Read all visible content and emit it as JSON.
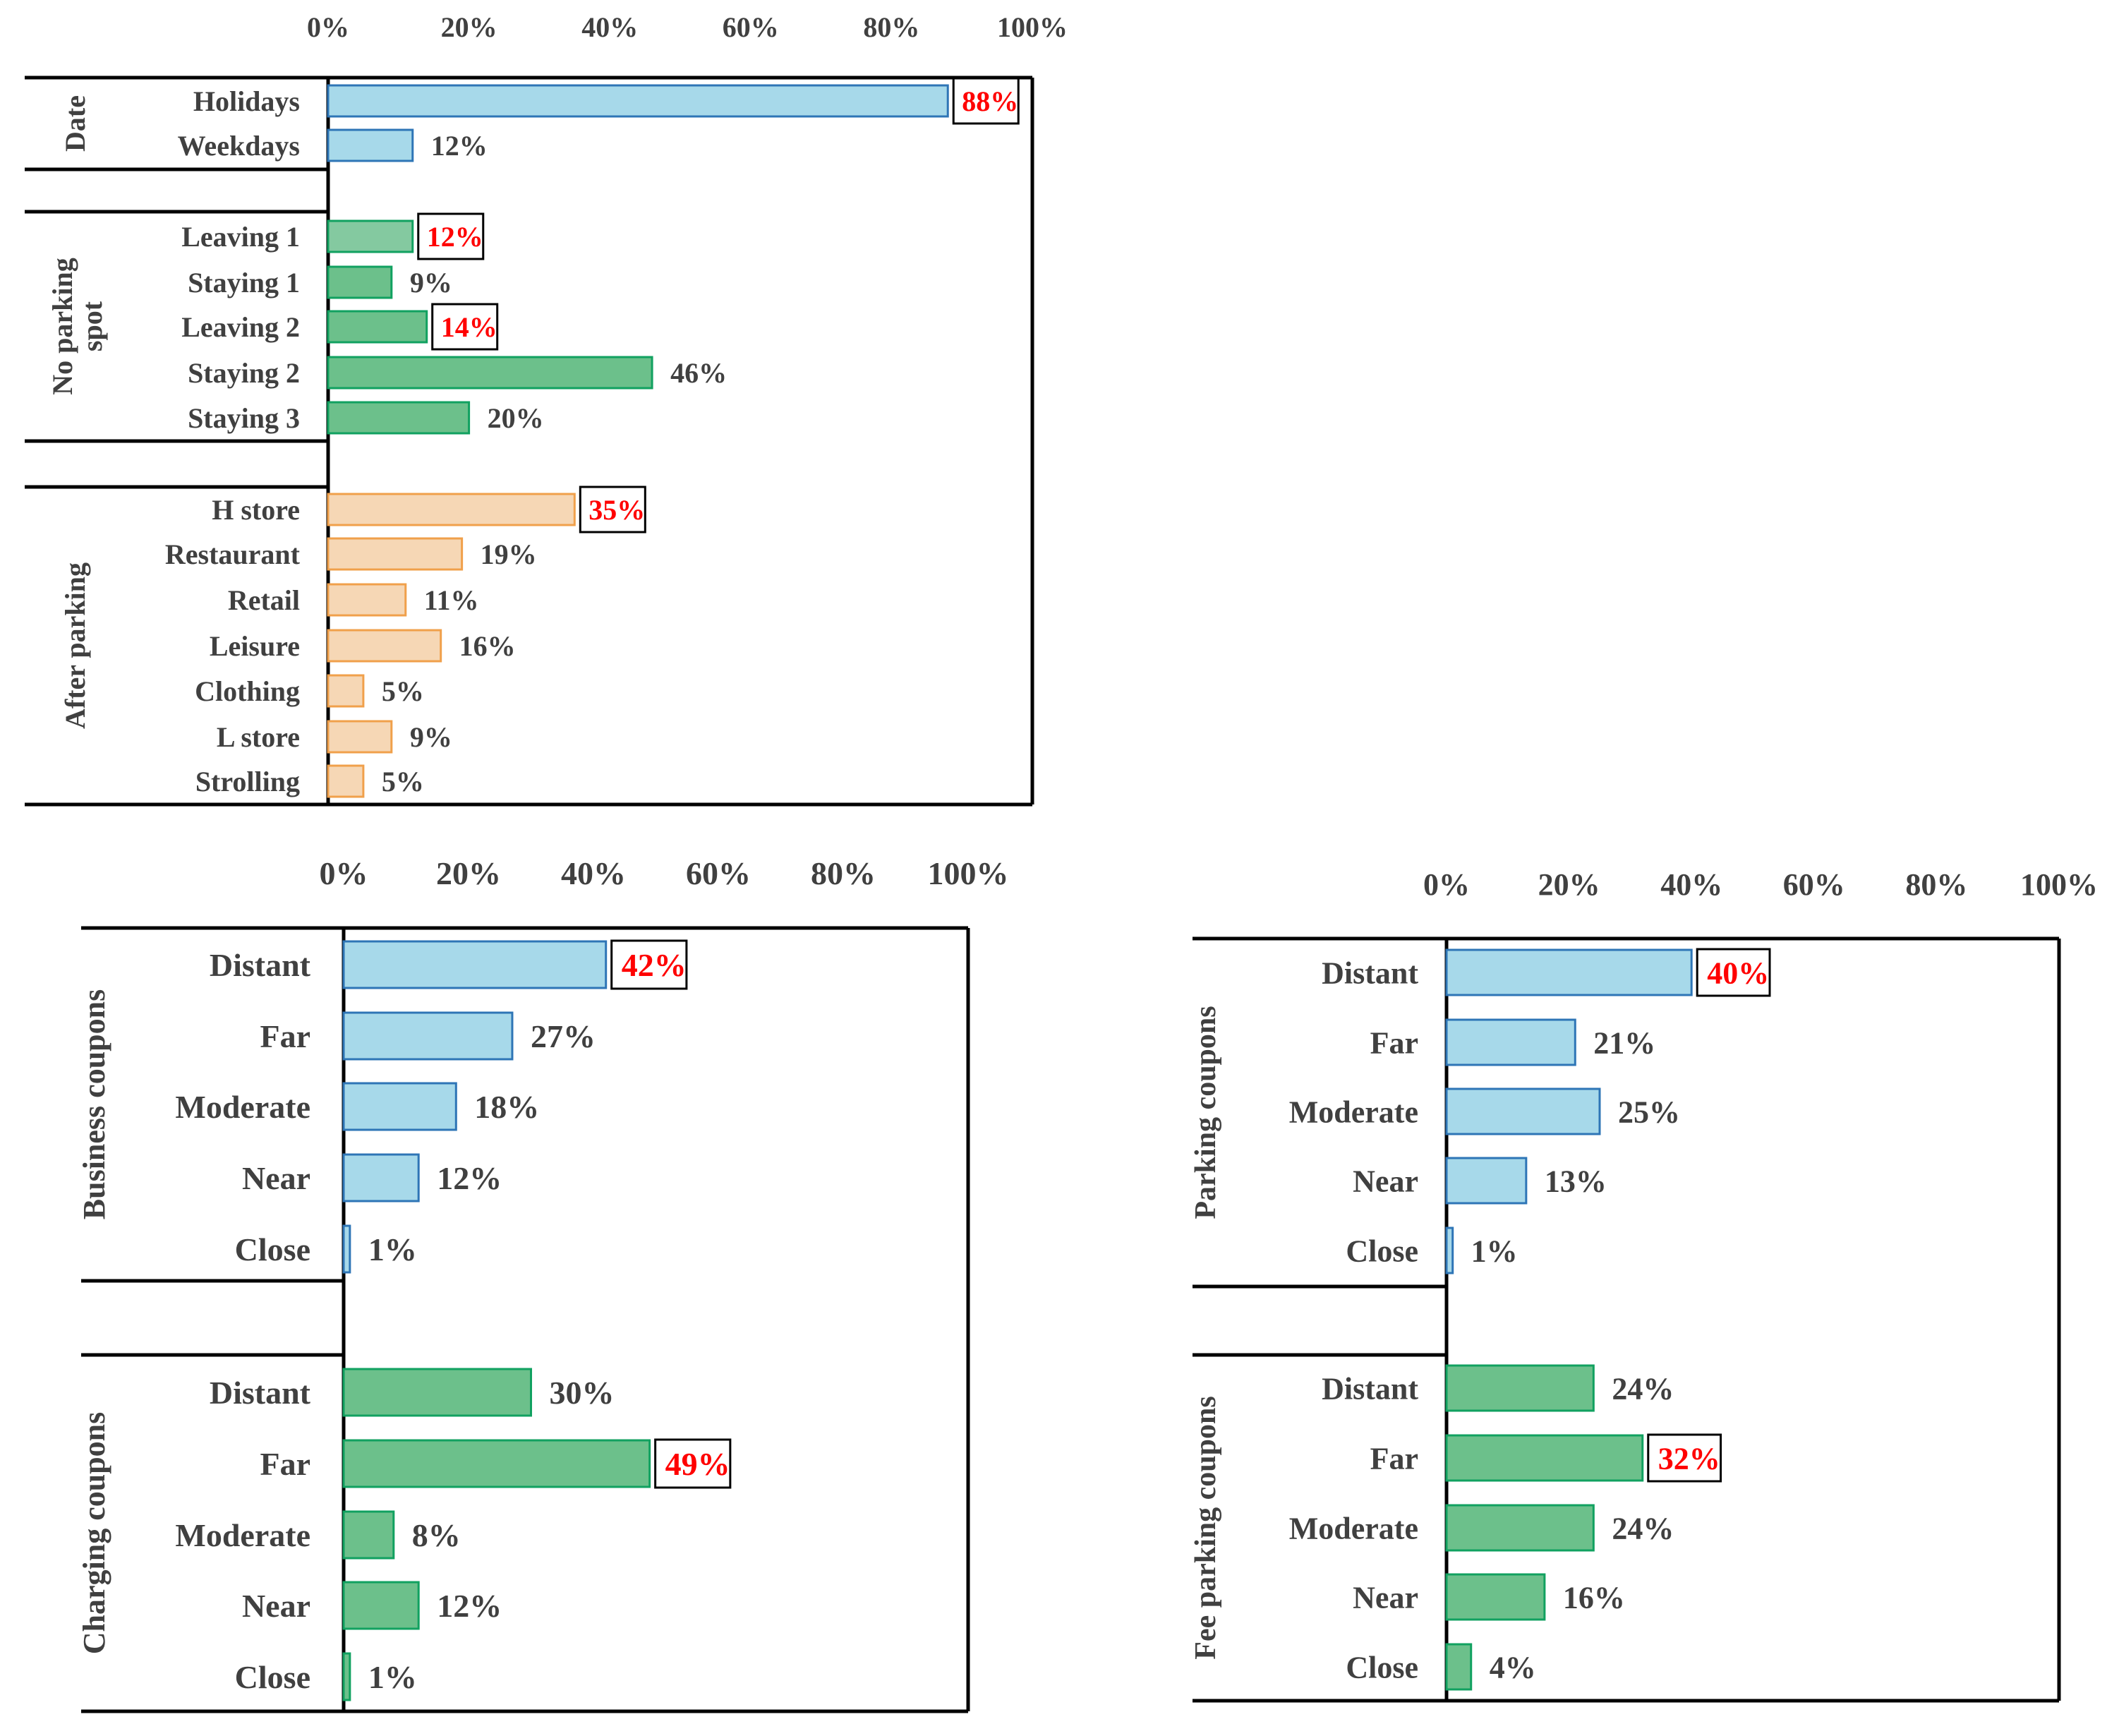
{
  "colors": {
    "blue_fill": "#a7d9ea",
    "blue_stroke": "#2e75b6",
    "green_fill": "#6cc08b",
    "green_stroke": "#11a160",
    "green_light_fill": "#84c9a0",
    "orange_fill": "#f6d7b5",
    "orange_stroke": "#f0a04b",
    "label_text": "#404040",
    "highlight_text": "#ff0000",
    "axis": "#000000"
  },
  "chart_data": [
    {
      "type": "bar",
      "orientation": "horizontal",
      "xlim": [
        0,
        100
      ],
      "x_ticks": [
        "0%",
        "20%",
        "40%",
        "60%",
        "80%",
        "100%"
      ],
      "groups": [
        {
          "name": "Date",
          "color": "blue",
          "categories": [
            "Holidays",
            "Weekdays"
          ],
          "values": [
            88,
            12
          ],
          "labels": [
            "88%",
            "12%"
          ],
          "highlighted": [
            true,
            false
          ]
        },
        {
          "name": "No parking spot",
          "color": "green",
          "categories": [
            "Leaving 1",
            "Staying 1",
            "Leaving 2",
            "Staying 2",
            "Staying 3"
          ],
          "values": [
            12,
            9,
            14,
            46,
            20
          ],
          "labels": [
            "12%",
            "9%",
            "14%",
            "46%",
            "20%"
          ],
          "highlighted": [
            true,
            false,
            true,
            false,
            false
          ]
        },
        {
          "name": "After parking",
          "color": "orange",
          "categories": [
            "H store",
            "Restaurant",
            "Retail",
            "Leisure",
            "Clothing",
            "L store",
            "Strolling"
          ],
          "values": [
            35,
            19,
            11,
            16,
            5,
            9,
            5
          ],
          "labels": [
            "35%",
            "19%",
            "11%",
            "16%",
            "5%",
            "9%",
            "5%"
          ],
          "highlighted": [
            true,
            false,
            false,
            false,
            false,
            false,
            false
          ]
        }
      ]
    },
    {
      "type": "bar",
      "orientation": "horizontal",
      "xlim": [
        0,
        100
      ],
      "x_ticks": [
        "0%",
        "20%",
        "40%",
        "60%",
        "80%",
        "100%"
      ],
      "groups": [
        {
          "name": "Business coupons",
          "color": "blue",
          "categories": [
            "Distant",
            "Far",
            "Moderate",
            "Near",
            "Close"
          ],
          "values": [
            42,
            27,
            18,
            12,
            1
          ],
          "labels": [
            "42%",
            "27%",
            "18%",
            "12%",
            "1%"
          ],
          "highlighted": [
            true,
            false,
            false,
            false,
            false
          ]
        },
        {
          "name": "Charging coupons",
          "color": "green",
          "categories": [
            "Distant",
            "Far",
            "Moderate",
            "Near",
            "Close"
          ],
          "values": [
            30,
            49,
            8,
            12,
            1
          ],
          "labels": [
            "30%",
            "49%",
            "8%",
            "12%",
            "1%"
          ],
          "highlighted": [
            false,
            true,
            false,
            false,
            false
          ]
        }
      ]
    },
    {
      "type": "bar",
      "orientation": "horizontal",
      "xlim": [
        0,
        100
      ],
      "x_ticks": [
        "0%",
        "20%",
        "40%",
        "60%",
        "80%",
        "100%"
      ],
      "groups": [
        {
          "name": "Parking coupons",
          "color": "blue",
          "categories": [
            "Distant",
            "Far",
            "Moderate",
            "Near",
            "Close"
          ],
          "values": [
            40,
            21,
            25,
            13,
            1
          ],
          "labels": [
            "40%",
            "21%",
            "25%",
            "13%",
            "1%"
          ],
          "highlighted": [
            true,
            false,
            false,
            false,
            false
          ]
        },
        {
          "name": "Fee parking coupons",
          "color": "green",
          "categories": [
            "Distant",
            "Far",
            "Moderate",
            "Near",
            "Close"
          ],
          "values": [
            24,
            32,
            24,
            16,
            4
          ],
          "labels": [
            "24%",
            "32%",
            "24%",
            "16%",
            "4%"
          ],
          "highlighted": [
            false,
            true,
            false,
            false,
            false
          ]
        }
      ]
    }
  ]
}
